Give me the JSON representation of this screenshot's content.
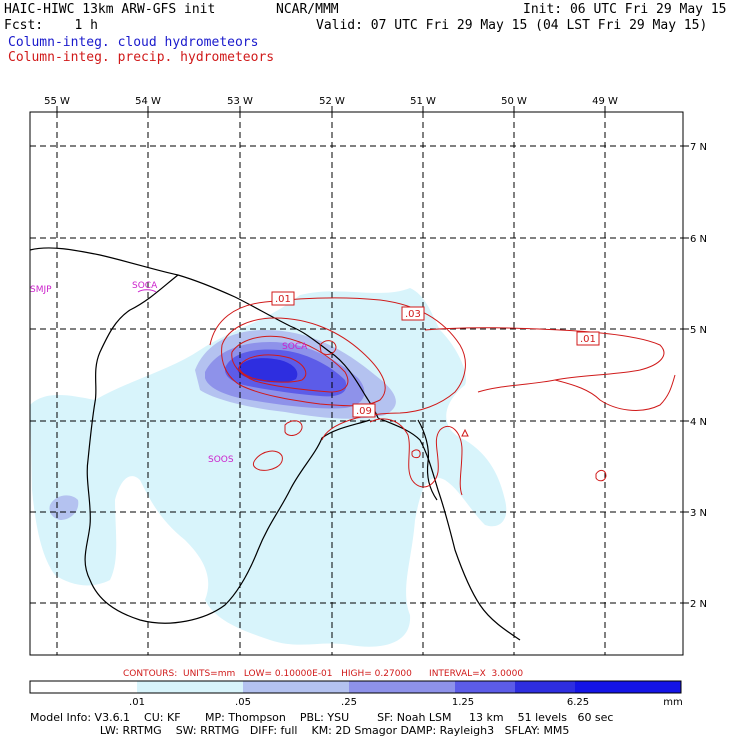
{
  "header": {
    "title_left": "HAIC-HIWC 13km ARW-GFS init",
    "org": "NCAR/MMM",
    "init": "Init: 06 UTC Fri 29 May 15",
    "fcst": "Fcst:    1 h",
    "valid": "Valid: 07 UTC Fri 29 May 15 (04 LST Fri 29 May 15)",
    "field1": "Column-integ. cloud hydrometeors",
    "field2": "Column-integ. precip. hydrometeors"
  },
  "map": {
    "lon_labels": [
      "55 W",
      "54 W",
      "53 W",
      "52 W",
      "51 W",
      "50 W",
      "49 W"
    ],
    "lat_labels": [
      "7 N",
      "6 N",
      "5 N",
      "4 N",
      "3 N",
      "2 N"
    ],
    "stations": [
      "SMJP",
      "SOCA",
      "SOCA",
      "SOOS"
    ],
    "contour_labels": [
      ".01",
      ".03",
      ".01",
      ".09"
    ],
    "colors": {
      "coast": "#000000",
      "contour": "#d01a1a",
      "station": "#cc22cc"
    }
  },
  "contour_info": "CONTOURS:  UNITS=mm   LOW= 0.10000E-01   HIGH= 0.27000      INTERVAL=X  3.0000",
  "colorbar": {
    "ticks": [
      ".01",
      ".05",
      ".25",
      "1.25",
      "6.25"
    ],
    "units": "mm",
    "colors": [
      "#ffffff",
      "#d8f4fb",
      "#b4c2f0",
      "#8e92ea",
      "#5c5ce8",
      "#2e2ee0",
      "#1414e6"
    ]
  },
  "model_info": {
    "line1": "Model Info: V3.6.1    CU: KF       MP: Thompson    PBL: YSU        SF: Noah LSM     13 km    51 levels   60 sec",
    "line2": "                    LW: RRTMG    SW: RRTMG   DIFF: full    KM: 2D Smagor DAMP: Rayleigh3   SFLAY: MM5"
  }
}
